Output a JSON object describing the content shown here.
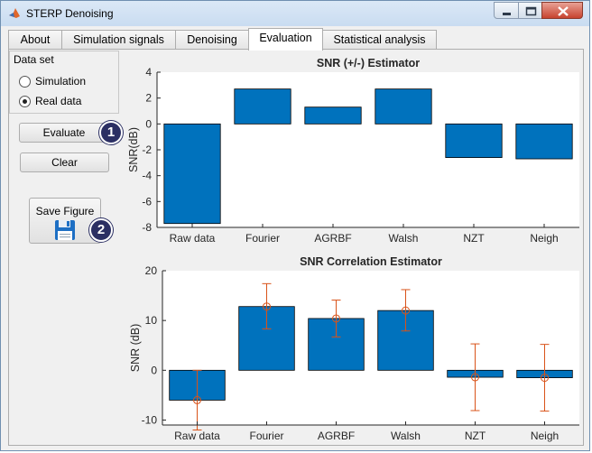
{
  "window": {
    "title": "STERP Denoising"
  },
  "tabs": [
    {
      "label": "About",
      "active": false
    },
    {
      "label": "Simulation signals",
      "active": false
    },
    {
      "label": "Denoising",
      "active": false
    },
    {
      "label": "Evaluation",
      "active": true
    },
    {
      "label": "Statistical analysis",
      "active": false
    }
  ],
  "dataset": {
    "title": "Data set",
    "options": [
      {
        "label": "Simulation",
        "selected": false
      },
      {
        "label": "Real data",
        "selected": true
      }
    ]
  },
  "buttons": {
    "evaluate": "Evaluate",
    "clear": "Clear",
    "save_figure": "Save Figure"
  },
  "badges": [
    "1",
    "2"
  ],
  "colors": {
    "bar": "#0072BD",
    "errorbar": "#D95319"
  },
  "chart_data": [
    {
      "type": "bar",
      "title": "SNR (+/-) Estimator",
      "xlabel": "",
      "ylabel": "SNR(dB)",
      "categories": [
        "Raw data",
        "Fourier",
        "AGRBF",
        "Walsh",
        "NZT",
        "Neigh"
      ],
      "values": [
        -7.7,
        2.7,
        1.3,
        2.7,
        -2.6,
        -2.7
      ],
      "ylim": [
        -8,
        4
      ],
      "yticks": [
        -8,
        -6,
        -4,
        -2,
        0,
        2,
        4
      ],
      "grid": false,
      "legend": "none"
    },
    {
      "type": "bar",
      "title": "SNR Correlation Estimator",
      "xlabel": "",
      "ylabel": "SNR (dB)",
      "categories": [
        "Raw data",
        "Fourier",
        "AGRBF",
        "Walsh",
        "NZT",
        "Neigh"
      ],
      "values": [
        -6,
        12.8,
        10.4,
        12,
        -1.4,
        -1.5
      ],
      "error_low": [
        -12,
        8.3,
        6.7,
        7.9,
        -8.1,
        -8.2
      ],
      "error_high": [
        0,
        17.4,
        14.1,
        16.2,
        5.3,
        5.2
      ],
      "ylim": [
        -11,
        20
      ],
      "yticks": [
        -10,
        0,
        10,
        20
      ],
      "grid": false,
      "legend": "none"
    }
  ]
}
